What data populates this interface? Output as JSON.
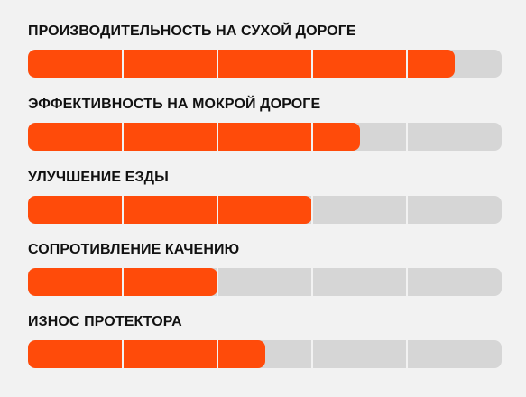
{
  "colors": {
    "accent": "#ff4b0a",
    "track": "#d6d6d6",
    "background": "#f2f2f2",
    "text": "#111111"
  },
  "segments": 5,
  "ratings": [
    {
      "label": "ПРОИЗВОДИТЕЛЬНОСТЬ НА СУХОЙ ДОРОГЕ",
      "value": 0.9
    },
    {
      "label": "ЭФФЕКТИВНОСТЬ НА МОКРОЙ ДОРОГЕ",
      "value": 0.7
    },
    {
      "label": "УЛУЧШЕНИЕ ЕЗДЫ",
      "value": 0.6
    },
    {
      "label": "СОПРОТИВЛЕНИЕ КАЧЕНИЮ",
      "value": 0.4
    },
    {
      "label": "ИЗНОС ПРОТЕКТОРА",
      "value": 0.5
    }
  ]
}
